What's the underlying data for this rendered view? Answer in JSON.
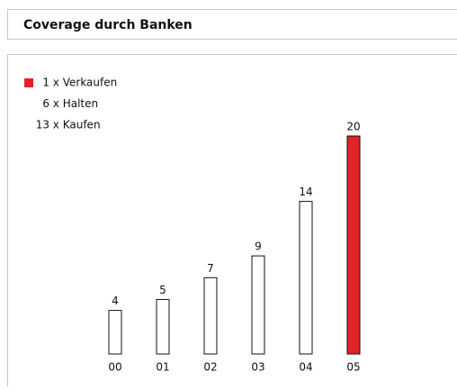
{
  "chart_data": {
    "type": "bar",
    "title": "Coverage durch Banken",
    "legend": [
      {
        "label": "1 x Verkaufen",
        "color": "#e32228"
      },
      {
        "label": "6 x Halten"
      },
      {
        "label": "13 x Kaufen"
      }
    ],
    "categories": [
      "00",
      "01",
      "02",
      "03",
      "04",
      "05"
    ],
    "values": [
      4,
      5,
      7,
      9,
      14,
      20
    ],
    "colors": [
      "#ffffff",
      "#ffffff",
      "#ffffff",
      "#ffffff",
      "#ffffff",
      "#e32228"
    ]
  }
}
